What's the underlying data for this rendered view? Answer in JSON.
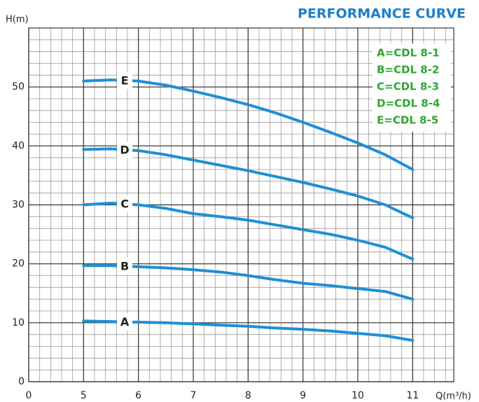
{
  "chart_data": {
    "type": "line",
    "title": "PERFORMANCE CURVE",
    "y_label": "H(m)",
    "x_label": "Q(m³/h)",
    "x": [
      5,
      5.5,
      6,
      6.5,
      7,
      7.5,
      8,
      8.5,
      9,
      9.5,
      10,
      10.5,
      11
    ],
    "xlim": [
      0,
      11.75
    ],
    "xticks": [
      0,
      5,
      6,
      7,
      8,
      9,
      10,
      11
    ],
    "ylim": [
      0,
      60
    ],
    "yticks": [
      0,
      10,
      20,
      30,
      40,
      50
    ],
    "grid": true,
    "minor_divisions": 5,
    "legend": "upper right",
    "series": [
      {
        "name": "A=CDL 8-1",
        "label": "A",
        "color": "#1e8fd6",
        "values": [
          10.3,
          10.2,
          10.1,
          10,
          9.8,
          9.6,
          9.4,
          9.1,
          8.9,
          8.6,
          8.2,
          7.8,
          7
        ]
      },
      {
        "name": "B=CDL 8-2",
        "label": "B",
        "color": "#1e8fd6",
        "values": [
          19.7,
          19.7,
          19.5,
          19.3,
          19,
          18.6,
          18,
          17.3,
          16.7,
          16.3,
          15.8,
          15.3,
          14
        ]
      },
      {
        "name": "C=CDL 8-3",
        "label": "C",
        "color": "#1e8fd6",
        "values": [
          30,
          30.3,
          30,
          29.4,
          28.5,
          28,
          27.4,
          26.6,
          25.8,
          25,
          24,
          22.8,
          20.8
        ]
      },
      {
        "name": "D=CDL 8-4",
        "label": "D",
        "color": "#1e8fd6",
        "values": [
          39.4,
          39.5,
          39.2,
          38.5,
          37.6,
          36.7,
          35.8,
          34.8,
          33.8,
          32.7,
          31.5,
          30,
          27.8
        ]
      },
      {
        "name": "E=CDL 8-5",
        "label": "E",
        "color": "#1e8fd6",
        "values": [
          51,
          51.2,
          51,
          50.3,
          49.3,
          48.2,
          47,
          45.6,
          44,
          42.3,
          40.5,
          38.5,
          36
        ]
      }
    ]
  }
}
